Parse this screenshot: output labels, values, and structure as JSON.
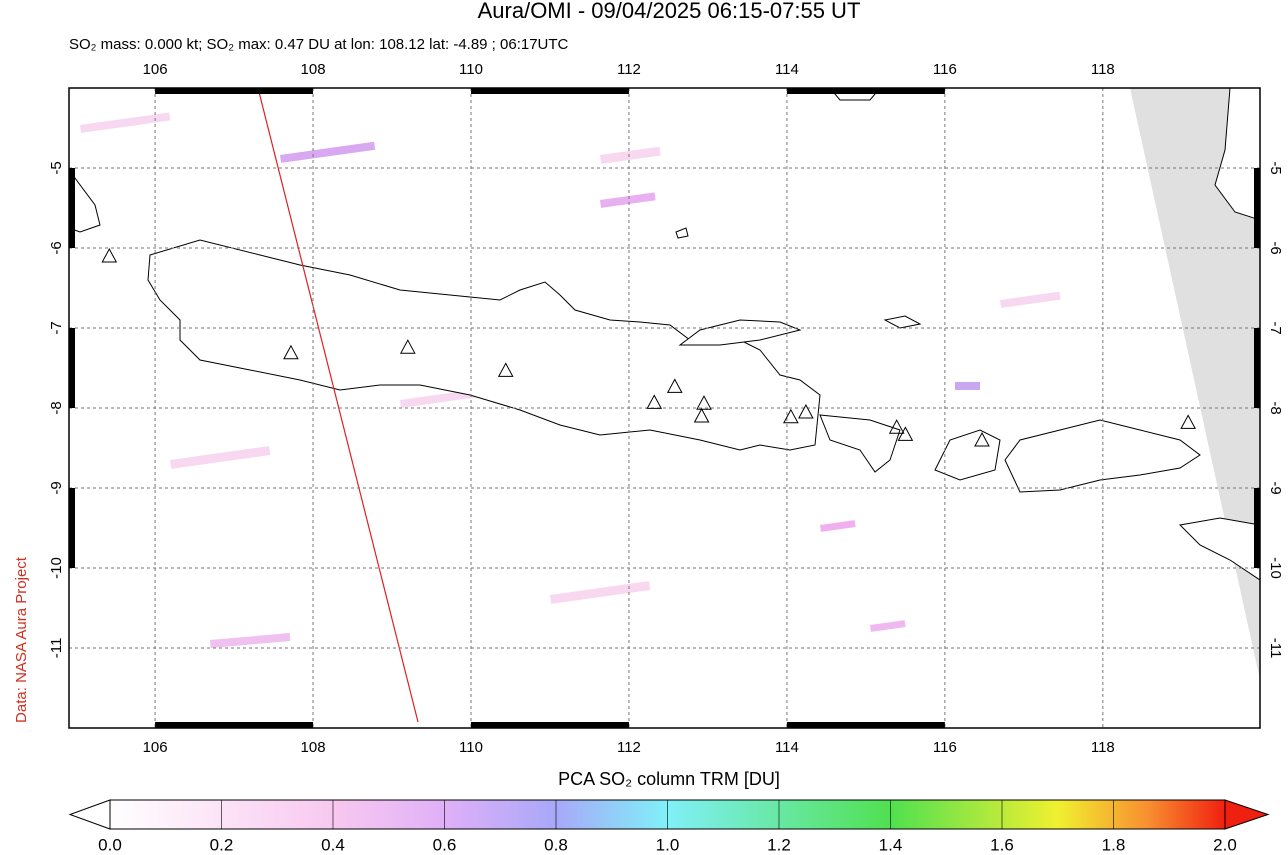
{
  "title": "Aura/OMI - 09/04/2025 06:15-07:55 UT",
  "subtitle": "SO₂ mass: 0.000 kt; SO₂ max: 0.47 DU at lon: 108.12 lat: -4.89 ; 06:17UTC",
  "credit": "Data: NASA Aura Project",
  "map": {
    "xlim": [
      104.91,
      119.99
    ],
    "ylim": [
      -12.0,
      -4.0
    ],
    "xticks": [
      106,
      108,
      110,
      112,
      114,
      116,
      118
    ],
    "yticks": [
      -5,
      -6,
      -7,
      -8,
      -9,
      -10,
      -11
    ]
  },
  "volcanoes": [
    {
      "lon": 105.42,
      "lat": -6.1
    },
    {
      "lon": 107.72,
      "lat": -7.31
    },
    {
      "lon": 109.2,
      "lat": -7.24
    },
    {
      "lon": 110.44,
      "lat": -7.53
    },
    {
      "lon": 112.32,
      "lat": -7.93
    },
    {
      "lon": 112.58,
      "lat": -7.73
    },
    {
      "lon": 112.95,
      "lat": -7.94
    },
    {
      "lon": 112.92,
      "lat": -8.1
    },
    {
      "lon": 114.05,
      "lat": -8.11
    },
    {
      "lon": 114.24,
      "lat": -8.05
    },
    {
      "lon": 115.39,
      "lat": -8.24
    },
    {
      "lon": 115.5,
      "lat": -8.33
    },
    {
      "lon": 116.47,
      "lat": -8.4
    },
    {
      "lon": 119.08,
      "lat": -8.18
    }
  ],
  "colorbar": {
    "label": "PCA SO₂ column TRM [DU]",
    "lim": [
      0,
      2
    ],
    "ticks": [
      {
        "value": 0,
        "label": "0.0"
      },
      {
        "value": 0.2,
        "label": "0.2"
      },
      {
        "value": 0.4,
        "label": "0.4"
      },
      {
        "value": 0.6,
        "label": "0.6"
      },
      {
        "value": 0.8,
        "label": "0.8"
      },
      {
        "value": 1,
        "label": "1.0"
      },
      {
        "value": 1.2,
        "label": "1.2"
      },
      {
        "value": 1.4,
        "label": "1.4"
      },
      {
        "value": 1.6,
        "label": "1.6"
      },
      {
        "value": 1.8,
        "label": "1.8"
      },
      {
        "value": 2,
        "label": "2.0"
      }
    ]
  }
}
